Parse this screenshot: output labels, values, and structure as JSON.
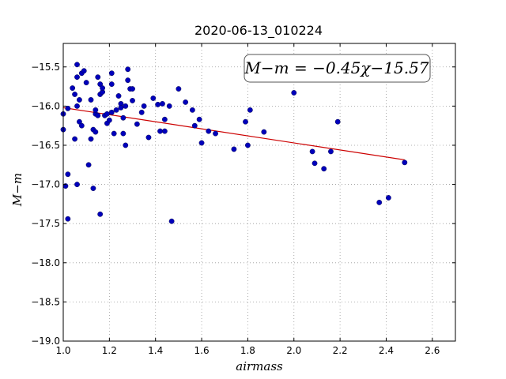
{
  "chart_data": {
    "type": "scatter",
    "title": "2020-06-13_010224",
    "xlabel": "airmass",
    "ylabel": "M−m",
    "xlim": [
      1.0,
      2.7
    ],
    "ylim": [
      -19.0,
      -15.2
    ],
    "y_inverted": true,
    "grid": true,
    "x_ticks": [
      1.0,
      1.2,
      1.4,
      1.6,
      1.8,
      2.0,
      2.2,
      2.4,
      2.6
    ],
    "x_tick_labels": [
      "1.0",
      "1.2",
      "1.4",
      "1.6",
      "1.8",
      "2.0",
      "2.2",
      "2.4",
      "2.6"
    ],
    "y_ticks": [
      -15.5,
      -16.0,
      -16.5,
      -17.0,
      -17.5,
      -18.0,
      -18.5,
      -19.0
    ],
    "y_tick_labels": [
      "−15.5",
      "−16.0",
      "−16.5",
      "−17.0",
      "−17.5",
      "−18.0",
      "−18.5",
      "−19.0"
    ],
    "annotation": "M−m = −0.45χ−15.57",
    "fit": {
      "slope": -0.45,
      "intercept": -15.57,
      "x_range": [
        1.0,
        2.48
      ],
      "color": "#cc0000"
    },
    "marker_color": "#0000bb",
    "points": [
      [
        1.0,
        -16.1
      ],
      [
        1.0,
        -16.3
      ],
      [
        1.02,
        -16.03
      ],
      [
        1.02,
        -16.87
      ],
      [
        1.01,
        -17.02
      ],
      [
        1.02,
        -17.44
      ],
      [
        1.04,
        -15.77
      ],
      [
        1.05,
        -15.85
      ],
      [
        1.05,
        -16.42
      ],
      [
        1.06,
        -15.47
      ],
      [
        1.06,
        -15.63
      ],
      [
        1.06,
        -16.0
      ],
      [
        1.06,
        -17.0
      ],
      [
        1.07,
        -15.92
      ],
      [
        1.07,
        -16.2
      ],
      [
        1.08,
        -15.58
      ],
      [
        1.08,
        -16.25
      ],
      [
        1.09,
        -15.55
      ],
      [
        1.1,
        -15.7
      ],
      [
        1.11,
        -16.75
      ],
      [
        1.12,
        -16.42
      ],
      [
        1.12,
        -15.92
      ],
      [
        1.13,
        -17.05
      ],
      [
        1.13,
        -16.3
      ],
      [
        1.14,
        -16.1
      ],
      [
        1.14,
        -16.33
      ],
      [
        1.14,
        -16.05
      ],
      [
        1.15,
        -15.63
      ],
      [
        1.15,
        -16.12
      ],
      [
        1.16,
        -15.85
      ],
      [
        1.16,
        -15.72
      ],
      [
        1.16,
        -17.38
      ],
      [
        1.17,
        -15.82
      ],
      [
        1.17,
        -15.77
      ],
      [
        1.18,
        -16.12
      ],
      [
        1.19,
        -16.22
      ],
      [
        1.19,
        -16.1
      ],
      [
        1.2,
        -16.18
      ],
      [
        1.21,
        -15.58
      ],
      [
        1.21,
        -16.08
      ],
      [
        1.21,
        -15.72
      ],
      [
        1.22,
        -16.35
      ],
      [
        1.23,
        -16.05
      ],
      [
        1.24,
        -15.87
      ],
      [
        1.25,
        -15.97
      ],
      [
        1.25,
        -16.02
      ],
      [
        1.26,
        -16.15
      ],
      [
        1.26,
        -16.35
      ],
      [
        1.27,
        -16.0
      ],
      [
        1.27,
        -16.5
      ],
      [
        1.28,
        -15.53
      ],
      [
        1.28,
        -15.67
      ],
      [
        1.29,
        -15.78
      ],
      [
        1.3,
        -15.93
      ],
      [
        1.3,
        -15.78
      ],
      [
        1.32,
        -16.23
      ],
      [
        1.34,
        -16.08
      ],
      [
        1.35,
        -16.0
      ],
      [
        1.37,
        -16.4
      ],
      [
        1.39,
        -15.9
      ],
      [
        1.41,
        -15.98
      ],
      [
        1.42,
        -16.32
      ],
      [
        1.43,
        -15.97
      ],
      [
        1.44,
        -16.17
      ],
      [
        1.44,
        -16.32
      ],
      [
        1.46,
        -16.0
      ],
      [
        1.47,
        -17.47
      ],
      [
        1.5,
        -15.78
      ],
      [
        1.53,
        -15.95
      ],
      [
        1.56,
        -16.05
      ],
      [
        1.57,
        -16.25
      ],
      [
        1.59,
        -16.17
      ],
      [
        1.6,
        -16.47
      ],
      [
        1.63,
        -16.32
      ],
      [
        1.66,
        -16.35
      ],
      [
        1.74,
        -16.55
      ],
      [
        1.79,
        -16.2
      ],
      [
        1.8,
        -16.5
      ],
      [
        1.81,
        -16.05
      ],
      [
        1.87,
        -16.33
      ],
      [
        2.0,
        -15.83
      ],
      [
        2.08,
        -16.58
      ],
      [
        2.09,
        -16.73
      ],
      [
        2.13,
        -16.8
      ],
      [
        2.16,
        -16.58
      ],
      [
        2.19,
        -16.2
      ],
      [
        2.37,
        -17.23
      ],
      [
        2.41,
        -17.17
      ],
      [
        2.48,
        -16.72
      ]
    ]
  }
}
